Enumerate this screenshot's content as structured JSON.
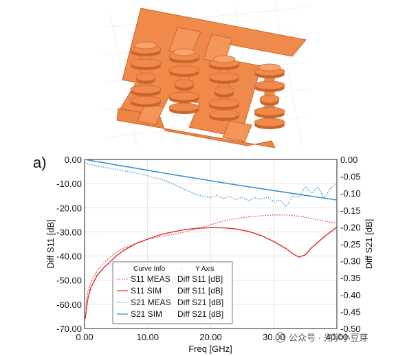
{
  "panel_label": "a)",
  "watermark": "公众号 · 光学小豆芽",
  "colors": {
    "s11": "#e0403a",
    "s21": "#3b8fd6",
    "copper": "#f08a4b",
    "copper_dark": "#c9652c",
    "grid": "#dcdcdc"
  },
  "chart_data": {
    "type": "line",
    "xlabel": "Freq [GHz]",
    "ylabel_left": "Diff S11 [dB]",
    "ylabel_right": "Diff S21 [dB]",
    "xlim": [
      0,
      40
    ],
    "ylim_left": [
      -70,
      0
    ],
    "ylim_right": [
      -0.5,
      0
    ],
    "x_ticks": [
      "0.00",
      "10.00",
      "20.00",
      "30.00",
      "40.00"
    ],
    "y_left_ticks": [
      "0.00",
      "-10.00",
      "-20.00",
      "-30.00",
      "-40.00",
      "-50.00",
      "-60.00",
      "-70.00"
    ],
    "y_right_ticks": [
      "0.00",
      "-0.05",
      "-0.10",
      "-0.15",
      "-0.20",
      "-0.25",
      "-0.30",
      "-0.35",
      "-0.40",
      "-0.45",
      "-0.50"
    ],
    "grid": true,
    "legend": {
      "placement": "bottom-left",
      "header_curve": "Curve Info",
      "header_axis": "Y Axis",
      "entries": [
        {
          "name": "S11 MEAS",
          "axis": "Diff S11 [dB]"
        },
        {
          "name": "S11 SIM",
          "axis": "Diff S11 [dB]"
        },
        {
          "name": "S21 MEAS",
          "axis": "Diff S21 [dB]"
        },
        {
          "name": "S21 SIM",
          "axis": "Diff S21 [dB]"
        }
      ]
    },
    "series": [
      {
        "name": "S11 MEAS",
        "axis": "left",
        "style": "dotted",
        "x": [
          0.1,
          0.5,
          1,
          2,
          3,
          4,
          5,
          6,
          8,
          10,
          12,
          14,
          16,
          18,
          20,
          22,
          24,
          26,
          28,
          30,
          32,
          34,
          36,
          38,
          40
        ],
        "y": [
          -62,
          -55,
          -51,
          -46,
          -43,
          -40.5,
          -38.5,
          -37,
          -35,
          -33,
          -32,
          -31,
          -30,
          -28.5,
          -27,
          -25.5,
          -24.5,
          -23.8,
          -23.3,
          -23,
          -23,
          -23.5,
          -24.5,
          -25.5,
          -26.5
        ]
      },
      {
        "name": "S11 SIM",
        "axis": "left",
        "style": "solid",
        "x": [
          0.1,
          0.5,
          1,
          2,
          3,
          4,
          5,
          6,
          8,
          10,
          12,
          14,
          16,
          18,
          20,
          22,
          24,
          26,
          28,
          30,
          32,
          33,
          34,
          35,
          36,
          38,
          40
        ],
        "y": [
          -66,
          -58,
          -53,
          -48,
          -45,
          -42.5,
          -40,
          -38,
          -35,
          -33,
          -31.2,
          -30,
          -29,
          -28.5,
          -28.2,
          -28.3,
          -28.8,
          -29.8,
          -31.5,
          -34,
          -37,
          -39,
          -40.5,
          -39.5,
          -36.5,
          -32,
          -28
        ]
      },
      {
        "name": "S21 MEAS",
        "axis": "right",
        "style": "dotted",
        "x": [
          0,
          2,
          4,
          6,
          8,
          10,
          12,
          14,
          16,
          18,
          19,
          20,
          21,
          22,
          23,
          24,
          25,
          26,
          27,
          28,
          29,
          30,
          31,
          32,
          33,
          34,
          35,
          36,
          37,
          38,
          39,
          40
        ],
        "y": [
          -0.01,
          -0.02,
          -0.026,
          -0.033,
          -0.04,
          -0.048,
          -0.058,
          -0.072,
          -0.09,
          -0.105,
          -0.11,
          -0.113,
          -0.106,
          -0.116,
          -0.109,
          -0.119,
          -0.111,
          -0.123,
          -0.113,
          -0.118,
          -0.11,
          -0.125,
          -0.12,
          -0.14,
          -0.108,
          -0.112,
          -0.08,
          -0.1,
          -0.082,
          -0.115,
          -0.085,
          -0.07
        ]
      },
      {
        "name": "S21 SIM",
        "axis": "right",
        "style": "solid",
        "x": [
          0,
          5,
          10,
          15,
          20,
          25,
          30,
          35,
          40
        ],
        "y": [
          0.0,
          -0.016,
          -0.032,
          -0.048,
          -0.063,
          -0.078,
          -0.092,
          -0.106,
          -0.12
        ]
      }
    ]
  }
}
